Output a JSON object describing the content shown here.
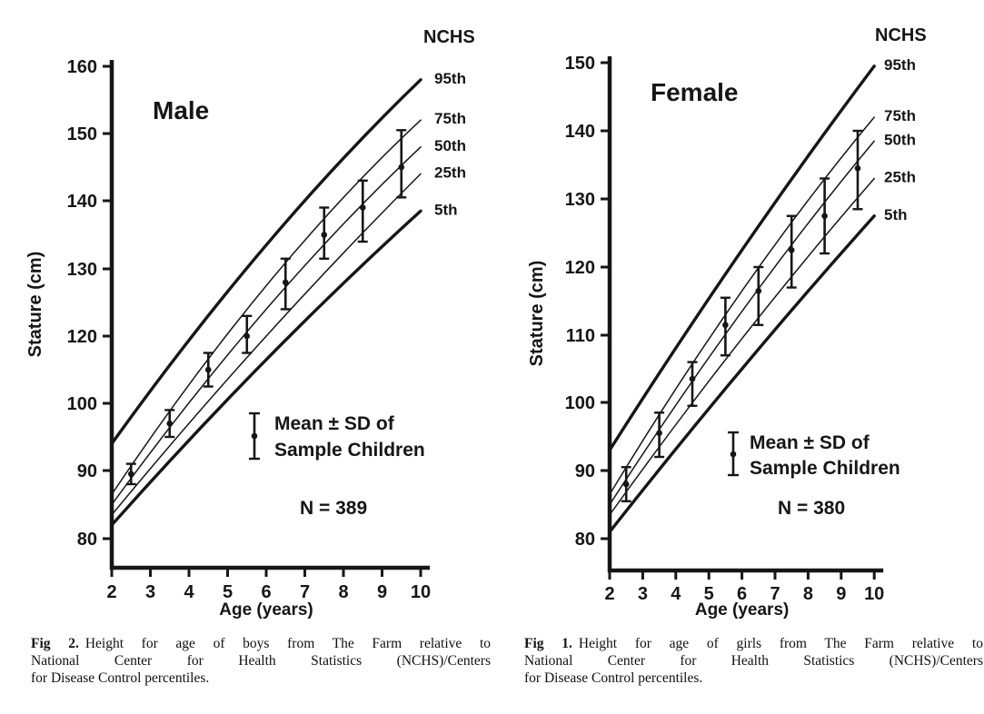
{
  "chart_data": [
    {
      "type": "line",
      "title": "Male",
      "xlabel": "Age (years)",
      "ylabel": "Stature (cm)",
      "xlim": [
        2,
        10
      ],
      "x_ticks": [
        "2",
        "3",
        "4",
        "5",
        "6",
        "7",
        "8",
        "9",
        "10"
      ],
      "y_tick_labels_top_to_bottom": [
        "160",
        "150",
        "140",
        "130",
        "120",
        "100",
        "90",
        "80"
      ],
      "axis_note": "y-axis reproduced as printed: evenly spaced ticks labeled 160,150,140,130,120,100,90,80 (110 omitted in source figure)",
      "corner_label": "NCHS",
      "percentile_series": [
        {
          "name": "95th",
          "x": [
            2,
            6,
            10
          ],
          "values": [
            94,
            133.5,
            158
          ],
          "weight": "thick"
        },
        {
          "name": "75th",
          "x": [
            2,
            6,
            10
          ],
          "values": [
            86.5,
            127.5,
            152
          ],
          "weight": "thin"
        },
        {
          "name": "50th",
          "x": [
            2,
            6,
            10
          ],
          "values": [
            85,
            124,
            148
          ],
          "weight": "thin"
        },
        {
          "name": "25th",
          "x": [
            2,
            6,
            10
          ],
          "values": [
            83.5,
            120,
            144
          ],
          "weight": "thin"
        },
        {
          "name": "5th",
          "x": [
            2,
            6,
            10
          ],
          "values": [
            82,
            113,
            138.5
          ],
          "weight": "thick"
        }
      ],
      "sample_series": {
        "label": "Mean ± SD of Sample Children",
        "n": 389,
        "n_label": "N = 389",
        "ages": [
          2.5,
          3.5,
          4.5,
          5.5,
          6.5,
          7.5,
          8.5,
          9.5
        ],
        "mean": [
          89.5,
          97,
          110,
          120,
          128,
          135,
          139,
          145
        ],
        "upper": [
          91,
          99,
          115,
          123,
          131.5,
          139,
          143,
          150.5
        ],
        "lower": [
          88,
          95,
          105,
          115,
          124,
          131.5,
          134,
          140.5
        ]
      },
      "legend": {
        "icon": "error-bar-icon",
        "line1": "Mean ± SD of",
        "line2": "Sample Children"
      }
    },
    {
      "type": "line",
      "title": "Female",
      "xlabel": "Age (years)",
      "ylabel": "Stature (cm)",
      "xlim": [
        2,
        10
      ],
      "x_ticks": [
        "2",
        "3",
        "4",
        "5",
        "6",
        "7",
        "8",
        "9",
        "10"
      ],
      "y_tick_labels_top_to_bottom": [
        "150",
        "140",
        "130",
        "120",
        "110",
        "100",
        "90",
        "80"
      ],
      "axis_note": "",
      "corner_label": "NCHS",
      "percentile_series": [
        {
          "name": "95th",
          "x": [
            2,
            6,
            10
          ],
          "values": [
            93,
            122.5,
            149.5
          ],
          "weight": "thick"
        },
        {
          "name": "75th",
          "x": [
            2,
            6,
            10
          ],
          "values": [
            86.5,
            116.5,
            142
          ],
          "weight": "thin"
        },
        {
          "name": "50th",
          "x": [
            2,
            6,
            10
          ],
          "values": [
            85,
            113.5,
            138.5
          ],
          "weight": "thin"
        },
        {
          "name": "25th",
          "x": [
            2,
            6,
            10
          ],
          "values": [
            83.5,
            109.5,
            133
          ],
          "weight": "thin"
        },
        {
          "name": "5th",
          "x": [
            2,
            6,
            10
          ],
          "values": [
            81,
            105,
            127.5
          ],
          "weight": "thick"
        }
      ],
      "sample_series": {
        "label": "Mean ± SD of Sample Children",
        "n": 380,
        "n_label": "N = 380",
        "ages": [
          2.5,
          3.5,
          4.5,
          5.5,
          6.5,
          7.5,
          8.5,
          9.5
        ],
        "mean": [
          88,
          95.5,
          103.5,
          111.5,
          116.5,
          122.5,
          127.5,
          134.5
        ],
        "upper": [
          90.5,
          98.5,
          106,
          115.5,
          120,
          127.5,
          133,
          140
        ],
        "lower": [
          85.5,
          92,
          99.5,
          107,
          111.5,
          117,
          122,
          128.5
        ]
      },
      "legend": {
        "icon": "error-bar-icon",
        "line1": "Mean ± SD of",
        "line2": "Sample Children"
      }
    }
  ],
  "captions": [
    {
      "label": "Fig 2.",
      "lines": [
        "Height for age of boys from The Farm relative to",
        "National Center for Health Statistics (NCHS)/Centers",
        "for Disease Control percentiles."
      ]
    },
    {
      "label": "Fig 1.",
      "lines": [
        "Height for age of girls from The Farm relative to",
        "National Center for Health Statistics (NCHS)/Centers",
        "for Disease Control percentiles."
      ]
    }
  ],
  "ink_color": "#161616"
}
